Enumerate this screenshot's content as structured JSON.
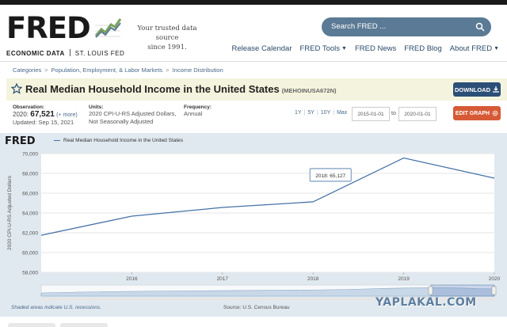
{
  "header": {
    "logo_word": "FRED",
    "logo_sub_left": "ECONOMIC DATA",
    "logo_sub_right": "ST. LOUIS FED",
    "tagline_line1": "Your trusted data source",
    "tagline_line2": "since 1991.",
    "search_placeholder": "Search FRED ...",
    "nav": {
      "release_calendar": "Release Calendar",
      "fred_tools": "FRED Tools",
      "fred_news": "FRED News",
      "fred_blog": "FRED Blog",
      "about_fred": "About FRED"
    }
  },
  "breadcrumb": [
    "Categories",
    "Population, Employment, & Labor Markets",
    "Income Distribution"
  ],
  "series": {
    "title": "Real Median Household Income in the United States",
    "id": "(MEHOINUSA672N)",
    "download_label": "DOWNLOAD"
  },
  "meta": {
    "observation_label": "Observation:",
    "observation_date": "2020:",
    "observation_value": "67,521",
    "observation_more": "(+ more)",
    "updated": "Updated: Sep 15, 2021",
    "units_label": "Units:",
    "units_line1": "2020 CPI-U-RS Adjusted Dollars,",
    "units_line2": "Not Seasonally Adjusted",
    "frequency_label": "Frequency:",
    "frequency_value": "Annual",
    "ranges": [
      "1Y",
      "5Y",
      "10Y",
      "Max"
    ],
    "date_from": "2015-01-01",
    "date_to_label": "to",
    "date_to": "2020-01-01",
    "edit_graph_label": "EDIT GRAPH"
  },
  "graph": {
    "mini_logo": "FRED",
    "legend_label": "Real Median Household Income in the United States",
    "tooltip": "2018: 65,127",
    "recession_note": "Shaded areas indicate U.S. recessions.",
    "source": "Source: U.S. Census Bureau",
    "accent_color": "#4572a7"
  },
  "chart_data": {
    "type": "line",
    "x": [
      2015,
      2016,
      2017,
      2018,
      2019,
      2020
    ],
    "series": [
      {
        "name": "Real Median Household Income in the United States",
        "values": [
          61748,
          63683,
          64557,
          65127,
          69560,
          67521
        ]
      }
    ],
    "x_ticks": [
      "2016",
      "2017",
      "2018",
      "2019",
      "2020"
    ],
    "y_ticks": [
      "58,000",
      "60,000",
      "62,000",
      "64,000",
      "66,000",
      "68,000",
      "70,000"
    ],
    "ylabel": "2020 CPI-U-RS Adjusted Dollars",
    "ylim": [
      58000,
      70000
    ],
    "xlim": [
      2015,
      2020
    ],
    "grid": true
  },
  "watermark": "YAPLAKAL.COM"
}
